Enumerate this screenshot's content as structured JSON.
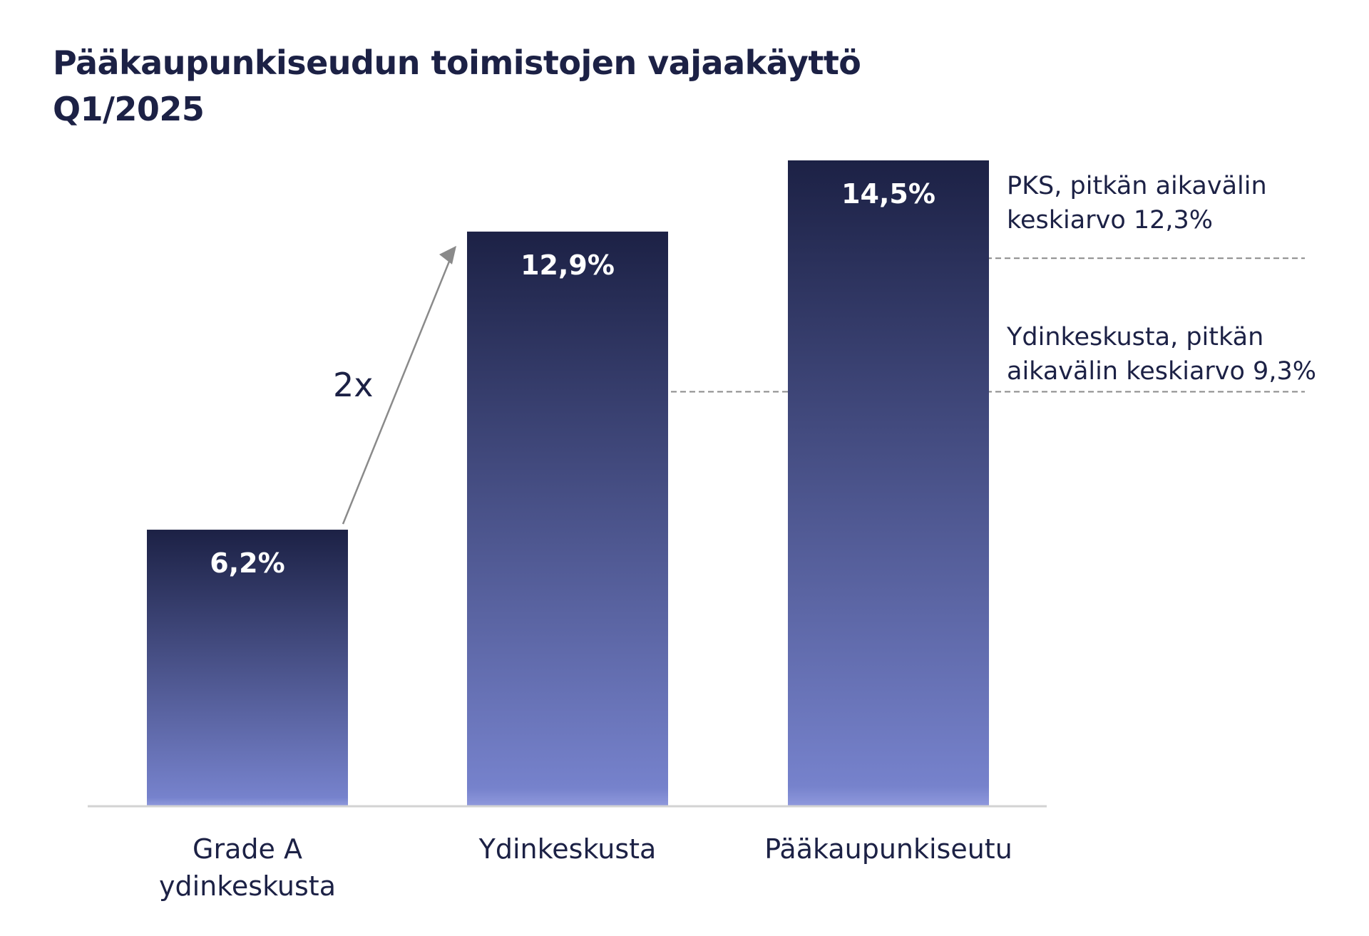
{
  "title": {
    "line1": "Pääkaupunkiseudun toimistojen vajaakäyttö",
    "line2": "Q1/2025"
  },
  "colors": {
    "bar_top": "#1c2145",
    "bar_bottom": "#7682cc",
    "axis": "#d3d3d3",
    "reference_line": "#8a8a8a",
    "arrow": "#8a8a8a",
    "text": "#1c2145"
  },
  "chart_data": {
    "type": "bar",
    "title": "Pääkaupunkiseudun toimistojen vajaakäyttö Q1/2025",
    "categories": [
      [
        "Grade A",
        "ydinkeskusta"
      ],
      [
        "Ydinkeskusta"
      ],
      [
        "Pääkaupunkiseutu"
      ]
    ],
    "values": [
      6.2,
      12.9,
      14.5
    ],
    "value_labels": [
      "6,2%",
      "12,9%",
      "14,5%"
    ],
    "unit": "%",
    "ylim": [
      0,
      14.5
    ],
    "grid": false,
    "reference_lines": [
      {
        "value": 12.3,
        "label_lines": [
          "PKS, pitkän aikavälin",
          "keskiarvo 12,3%"
        ]
      },
      {
        "value": 9.3,
        "label_lines": [
          "Ydinkeskusta, pitkän",
          "aikavälin keskiarvo 9,3%"
        ]
      }
    ],
    "annotation": {
      "text": "2x",
      "from_category": 0,
      "to_category": 1
    }
  }
}
